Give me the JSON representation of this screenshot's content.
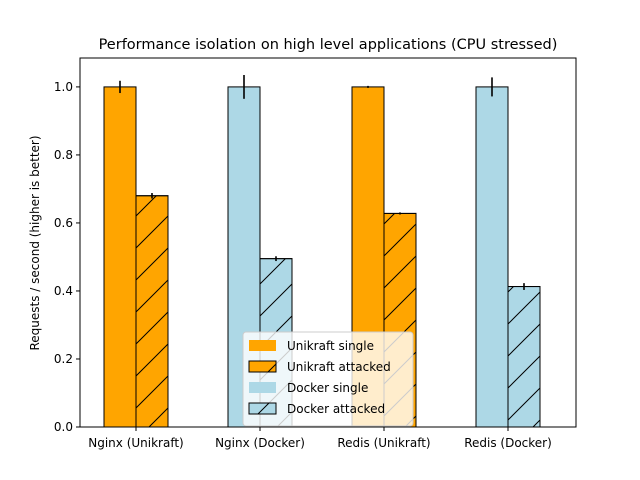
{
  "chart_data": {
    "type": "bar",
    "title": "Performance isolation on high level applications (CPU stressed)",
    "xlabel": "",
    "ylabel": "Requests / second (higher is better)",
    "categories": [
      "Nginx (Unikraft)",
      "Nginx (Docker)",
      "Redis (Unikraft)",
      "Redis (Docker)"
    ],
    "ylim": [
      0.0,
      1.085
    ],
    "yticks": [
      "0.0",
      "0.2",
      "0.4",
      "0.6",
      "0.8",
      "1.0"
    ],
    "grid": false,
    "legend_position": "lower-center",
    "bars": [
      {
        "category": 0,
        "slot": 0,
        "value": 1.0,
        "error": 0.018,
        "series": 0
      },
      {
        "category": 0,
        "slot": 1,
        "value": 0.68,
        "error": 0.008,
        "series": 1
      },
      {
        "category": 1,
        "slot": 0,
        "value": 1.0,
        "error": 0.035,
        "series": 2
      },
      {
        "category": 1,
        "slot": 1,
        "value": 0.495,
        "error": 0.007,
        "series": 3
      },
      {
        "category": 2,
        "slot": 0,
        "value": 1.0,
        "error": 0.003,
        "series": 0
      },
      {
        "category": 2,
        "slot": 1,
        "value": 0.628,
        "error": 0.003,
        "series": 1
      },
      {
        "category": 3,
        "slot": 0,
        "value": 1.0,
        "error": 0.028,
        "series": 2
      },
      {
        "category": 3,
        "slot": 1,
        "value": 0.413,
        "error": 0.01,
        "series": 3
      }
    ],
    "series": [
      {
        "name": "Unikraft single",
        "color": "#ffa500",
        "hatch": false
      },
      {
        "name": "Unikraft attacked",
        "color": "#ffa500",
        "hatch": true
      },
      {
        "name": "Docker single",
        "color": "#add8e6",
        "hatch": false
      },
      {
        "name": "Docker attacked",
        "color": "#add8e6",
        "hatch": true
      }
    ]
  }
}
